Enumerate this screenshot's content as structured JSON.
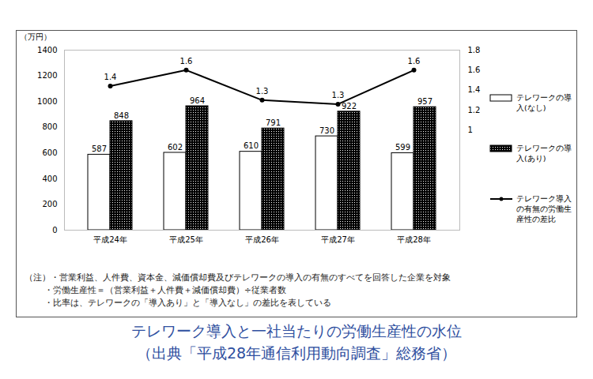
{
  "chart_data": {
    "type": "bar",
    "title": "テレワーク導入と一社当たりの労働生産性の水位",
    "subtitle": "（出典「平成28年通信利用動向調査」総務省）",
    "ylabel": "（万円）",
    "annotations": [
      "（注）・営業利益、人件費、資本金、減価償却費及びテレワークの導入の有無のすべてを回答した企業を対象",
      "・労働生産性＝（営業利益＋人件費＋減価償却費）÷従業者数",
      "・比率は、テレワークの「導入あり」と「導入なし」の差比を表している"
    ],
    "categories": [
      "平成24年",
      "平成25年",
      "平成26年",
      "平成27年",
      "平成28年"
    ],
    "series": [
      {
        "name": "テレワークの導入(なし)",
        "color": "#ffffff",
        "values": [
          587,
          602,
          610,
          730,
          599
        ]
      },
      {
        "name": "テレワークの導入(あり)",
        "color": "#000000",
        "values": [
          848,
          964,
          791,
          922,
          957
        ]
      },
      {
        "name": "テレワーク導入の有無の労働生産性の差比",
        "type": "line",
        "axis": "y2",
        "color": "#000000",
        "marker": "circle",
        "values": [
          1.44,
          1.6,
          1.3,
          1.26,
          1.6
        ],
        "value_labels": [
          "1.4",
          "1.6",
          "1.3",
          "1.3",
          "1.6"
        ]
      }
    ],
    "ylim": [
      0,
      1400
    ],
    "yticks": [
      0,
      200,
      400,
      600,
      800,
      1000,
      1200,
      1400
    ],
    "y2lim": [
      0,
      1.8
    ],
    "y2ticks": [
      1,
      1.2,
      1.4,
      1.6,
      1.8
    ],
    "data_labels": true,
    "legend": "right",
    "grid": false
  }
}
